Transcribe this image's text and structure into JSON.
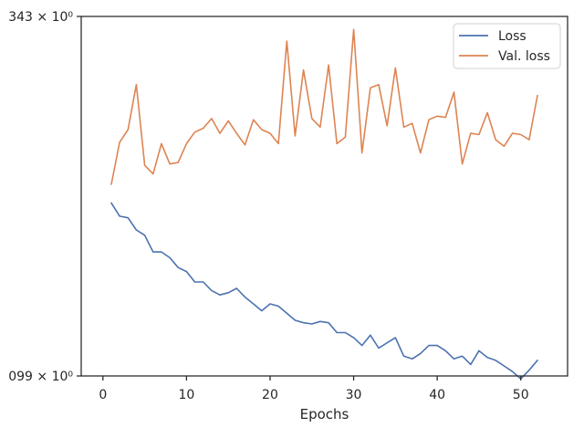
{
  "chart_data": {
    "type": "line",
    "title": "",
    "xlabel": "Epochs",
    "ylabel": "",
    "xlim": [
      -2.6,
      55.6
    ],
    "ylim": [
      0.99,
      3.43
    ],
    "y_scale": "log",
    "x_ticks": [
      0,
      10,
      20,
      30,
      40,
      50
    ],
    "x_tick_labels": [
      "0",
      "10",
      "20",
      "30",
      "40",
      "50"
    ],
    "y_tick_labels": [
      {
        "value": 3.43,
        "label": "343 × 10⁰"
      },
      {
        "value": 0.99,
        "label": "099 × 10⁰"
      }
    ],
    "grid": false,
    "legend_position": "top-right",
    "x": [
      1,
      2,
      3,
      4,
      5,
      6,
      7,
      8,
      9,
      10,
      11,
      12,
      13,
      14,
      15,
      16,
      17,
      18,
      19,
      20,
      21,
      22,
      23,
      24,
      25,
      26,
      27,
      28,
      29,
      30,
      31,
      32,
      33,
      34,
      35,
      36,
      37,
      38,
      39,
      40,
      41,
      42,
      43,
      44,
      45,
      46,
      47,
      48,
      49,
      50,
      51,
      52
    ],
    "series": [
      {
        "name": "Loss",
        "color": "#4c72b0",
        "values": [
          1.8,
          1.72,
          1.71,
          1.64,
          1.61,
          1.52,
          1.52,
          1.49,
          1.44,
          1.42,
          1.37,
          1.37,
          1.33,
          1.31,
          1.32,
          1.34,
          1.3,
          1.27,
          1.24,
          1.27,
          1.26,
          1.23,
          1.2,
          1.19,
          1.185,
          1.195,
          1.19,
          1.15,
          1.15,
          1.13,
          1.1,
          1.14,
          1.09,
          1.11,
          1.13,
          1.06,
          1.05,
          1.07,
          1.1,
          1.1,
          1.08,
          1.05,
          1.06,
          1.03,
          1.08,
          1.055,
          1.045,
          1.025,
          1.005,
          0.98,
          1.01,
          1.045
        ]
      },
      {
        "name": "Val. loss",
        "color": "#dd8452",
        "values": [
          1.92,
          2.22,
          2.32,
          2.71,
          2.05,
          1.99,
          2.21,
          2.06,
          2.07,
          2.21,
          2.3,
          2.33,
          2.41,
          2.29,
          2.39,
          2.29,
          2.2,
          2.4,
          2.32,
          2.29,
          2.21,
          3.15,
          2.27,
          2.85,
          2.41,
          2.34,
          2.9,
          2.21,
          2.26,
          3.28,
          2.14,
          2.68,
          2.71,
          2.35,
          2.87,
          2.34,
          2.37,
          2.14,
          2.4,
          2.43,
          2.42,
          2.64,
          2.06,
          2.29,
          2.28,
          2.46,
          2.24,
          2.19,
          2.29,
          2.28,
          2.24,
          2.61
        ]
      }
    ]
  }
}
